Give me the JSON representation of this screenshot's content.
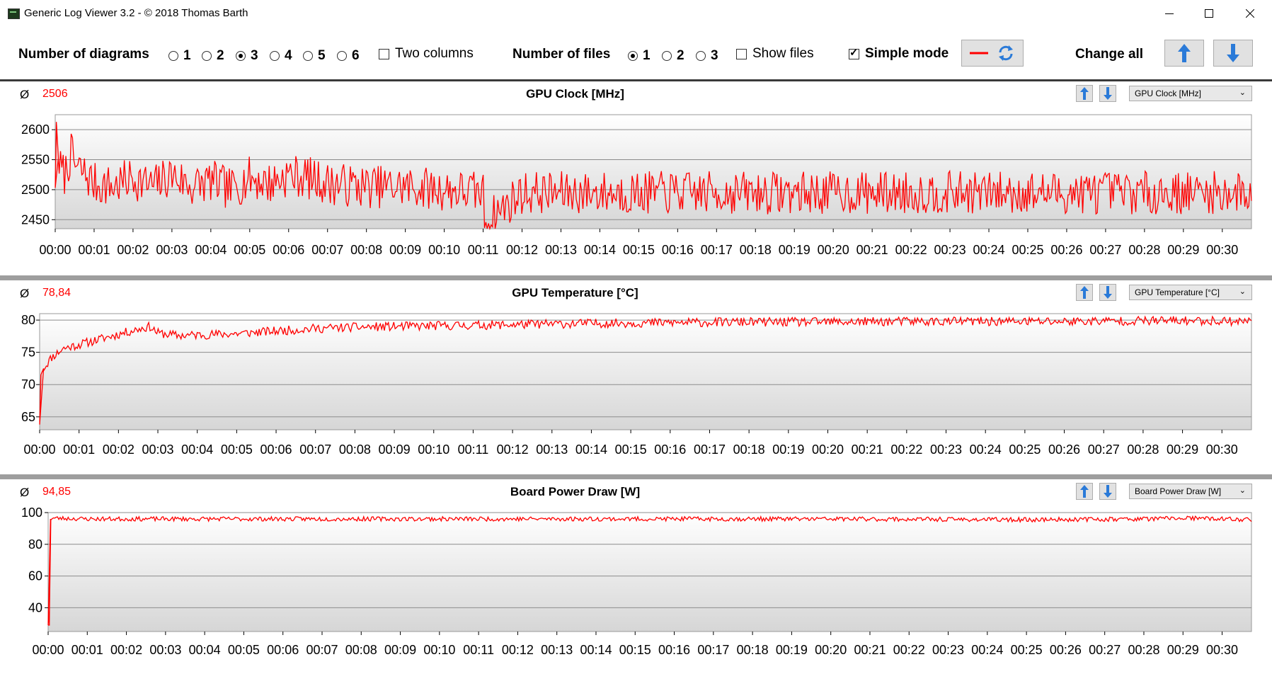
{
  "window": {
    "title": "Generic Log Viewer 3.2 - © 2018 Thomas Barth"
  },
  "toolbar": {
    "diagrams_label": "Number of diagrams",
    "diagram_options": [
      "1",
      "2",
      "3",
      "4",
      "5",
      "6"
    ],
    "diagram_selected": "3",
    "two_columns_label": "Two columns",
    "two_columns_checked": false,
    "files_label": "Number of files",
    "file_options": [
      "1",
      "2",
      "3"
    ],
    "file_selected": "1",
    "show_files_label": "Show files",
    "show_files_checked": false,
    "simple_mode_label": "Simple mode",
    "simple_mode_checked": true,
    "change_all_label": "Change all"
  },
  "colors": {
    "series": "#ff0000",
    "accent": "#2a7ad8",
    "separator": "#9e9e9e"
  },
  "panels": [
    {
      "avg_symbol": "Ø",
      "average": "2506",
      "title": "GPU Clock [MHz]",
      "select_value": "GPU Clock [MHz]",
      "up_icon": "arrow-up-icon",
      "down_icon": "arrow-down-icon"
    },
    {
      "avg_symbol": "Ø",
      "average": "78,84",
      "title": "GPU Temperature [°C]",
      "select_value": "GPU Temperature [°C]",
      "up_icon": "arrow-up-icon",
      "down_icon": "arrow-down-icon"
    },
    {
      "avg_symbol": "Ø",
      "average": "94,85",
      "title": "Board Power Draw [W]",
      "select_value": "Board Power Draw [W]",
      "up_icon": "arrow-up-icon",
      "down_icon": "arrow-down-icon"
    }
  ],
  "chart_data": [
    {
      "type": "line",
      "title": "GPU Clock [MHz]",
      "ylim": [
        2435,
        2625
      ],
      "yticks": [
        2450,
        2500,
        2550,
        2600
      ],
      "xlim": [
        0,
        30.75
      ],
      "xticks": [
        "00:00",
        "00:01",
        "00:02",
        "00:03",
        "00:04",
        "00:05",
        "00:06",
        "00:07",
        "00:08",
        "00:09",
        "00:10",
        "00:11",
        "00:12",
        "00:13",
        "00:14",
        "00:15",
        "00:16",
        "00:17",
        "00:18",
        "00:19",
        "00:20",
        "00:21",
        "00:22",
        "00:23",
        "00:24",
        "00:25",
        "00:26",
        "00:27",
        "00:28",
        "00:29",
        "00:30"
      ],
      "grid": true,
      "series": [
        {
          "x": [
            0,
            0.03,
            0.08,
            0.15,
            0.25,
            0.4,
            0.55,
            0.7,
            1.0,
            1.5,
            2.0,
            2.5,
            3.0,
            3.5,
            4.0,
            4.5,
            5.0,
            5.5,
            6.0,
            6.5,
            7.0,
            8.0,
            9.0,
            10.0,
            11.0,
            11.05,
            12.0,
            13.0,
            14.0,
            15.0,
            16.0,
            17.0,
            18.0,
            19.0,
            20.0,
            21.0,
            22.0,
            23.0,
            24.0,
            25.0,
            26.0,
            27.0,
            28.0,
            29.0,
            30.0,
            30.7
          ],
          "values": [
            2503,
            2613,
            2553,
            2530,
            2525,
            2560,
            2535,
            2530,
            2510,
            2505,
            2520,
            2505,
            2525,
            2505,
            2515,
            2500,
            2520,
            2510,
            2525,
            2520,
            2510,
            2505,
            2505,
            2500,
            2495,
            2446,
            2495,
            2495,
            2495,
            2495,
            2495,
            2495,
            2495,
            2495,
            2495,
            2495,
            2495,
            2495,
            2495,
            2495,
            2495,
            2495,
            2495,
            2495,
            2495,
            2495
          ],
          "noise": 36,
          "seed": 7
        }
      ]
    },
    {
      "type": "line",
      "title": "GPU Temperature [°C]",
      "ylim": [
        63,
        81
      ],
      "yticks": [
        65,
        70,
        75,
        80
      ],
      "xlim": [
        0,
        30.75
      ],
      "xticks": [
        "00:00",
        "00:01",
        "00:02",
        "00:03",
        "00:04",
        "00:05",
        "00:06",
        "00:07",
        "00:08",
        "00:09",
        "00:10",
        "00:11",
        "00:12",
        "00:13",
        "00:14",
        "00:15",
        "00:16",
        "00:17",
        "00:18",
        "00:19",
        "00:20",
        "00:21",
        "00:22",
        "00:23",
        "00:24",
        "00:25",
        "00:26",
        "00:27",
        "00:28",
        "00:29",
        "00:30"
      ],
      "grid": true,
      "series": [
        {
          "x": [
            0,
            0.03,
            0.1,
            0.3,
            0.6,
            1.0,
            1.5,
            2.0,
            2.5,
            2.8,
            3.0,
            3.5,
            4.0,
            5.0,
            6.0,
            7.0,
            8.0,
            9.0,
            10.0,
            12.0,
            14.0,
            16.0,
            18.0,
            20.0,
            22.0,
            24.0,
            26.0,
            28.0,
            30.0,
            30.7
          ],
          "values": [
            63.8,
            71.5,
            72.5,
            74.2,
            75.6,
            76.2,
            77.0,
            77.8,
            78.6,
            79.0,
            78.0,
            77.6,
            77.7,
            77.9,
            78.3,
            78.7,
            78.9,
            79.0,
            79.1,
            79.3,
            79.5,
            79.6,
            79.7,
            79.7,
            79.8,
            79.8,
            79.8,
            79.9,
            79.9,
            79.8
          ],
          "noise": 0.7,
          "seed": 11
        }
      ]
    },
    {
      "type": "line",
      "title": "Board Power Draw [W]",
      "ylim": [
        25,
        100
      ],
      "yticks": [
        40,
        60,
        80,
        100
      ],
      "xlim": [
        0,
        30.75
      ],
      "xticks": [
        "00:00",
        "00:01",
        "00:02",
        "00:03",
        "00:04",
        "00:05",
        "00:06",
        "00:07",
        "00:08",
        "00:09",
        "00:10",
        "00:11",
        "00:12",
        "00:13",
        "00:14",
        "00:15",
        "00:16",
        "00:17",
        "00:18",
        "00:19",
        "00:20",
        "00:21",
        "00:22",
        "00:23",
        "00:24",
        "00:25",
        "00:26",
        "00:27",
        "00:28",
        "00:29",
        "00:30"
      ],
      "grid": true,
      "series": [
        {
          "x": [
            0,
            0.03,
            0.06,
            0.1,
            1.0,
            5.0,
            10.0,
            15.0,
            20.0,
            25.0,
            28.0,
            29.0,
            30.0,
            30.7
          ],
          "values": [
            29,
            29,
            96,
            96.5,
            96,
            96,
            96,
            96,
            96,
            95.5,
            96,
            96.5,
            96,
            95.5
          ],
          "noise": 1.4,
          "seed": 23
        }
      ]
    }
  ]
}
